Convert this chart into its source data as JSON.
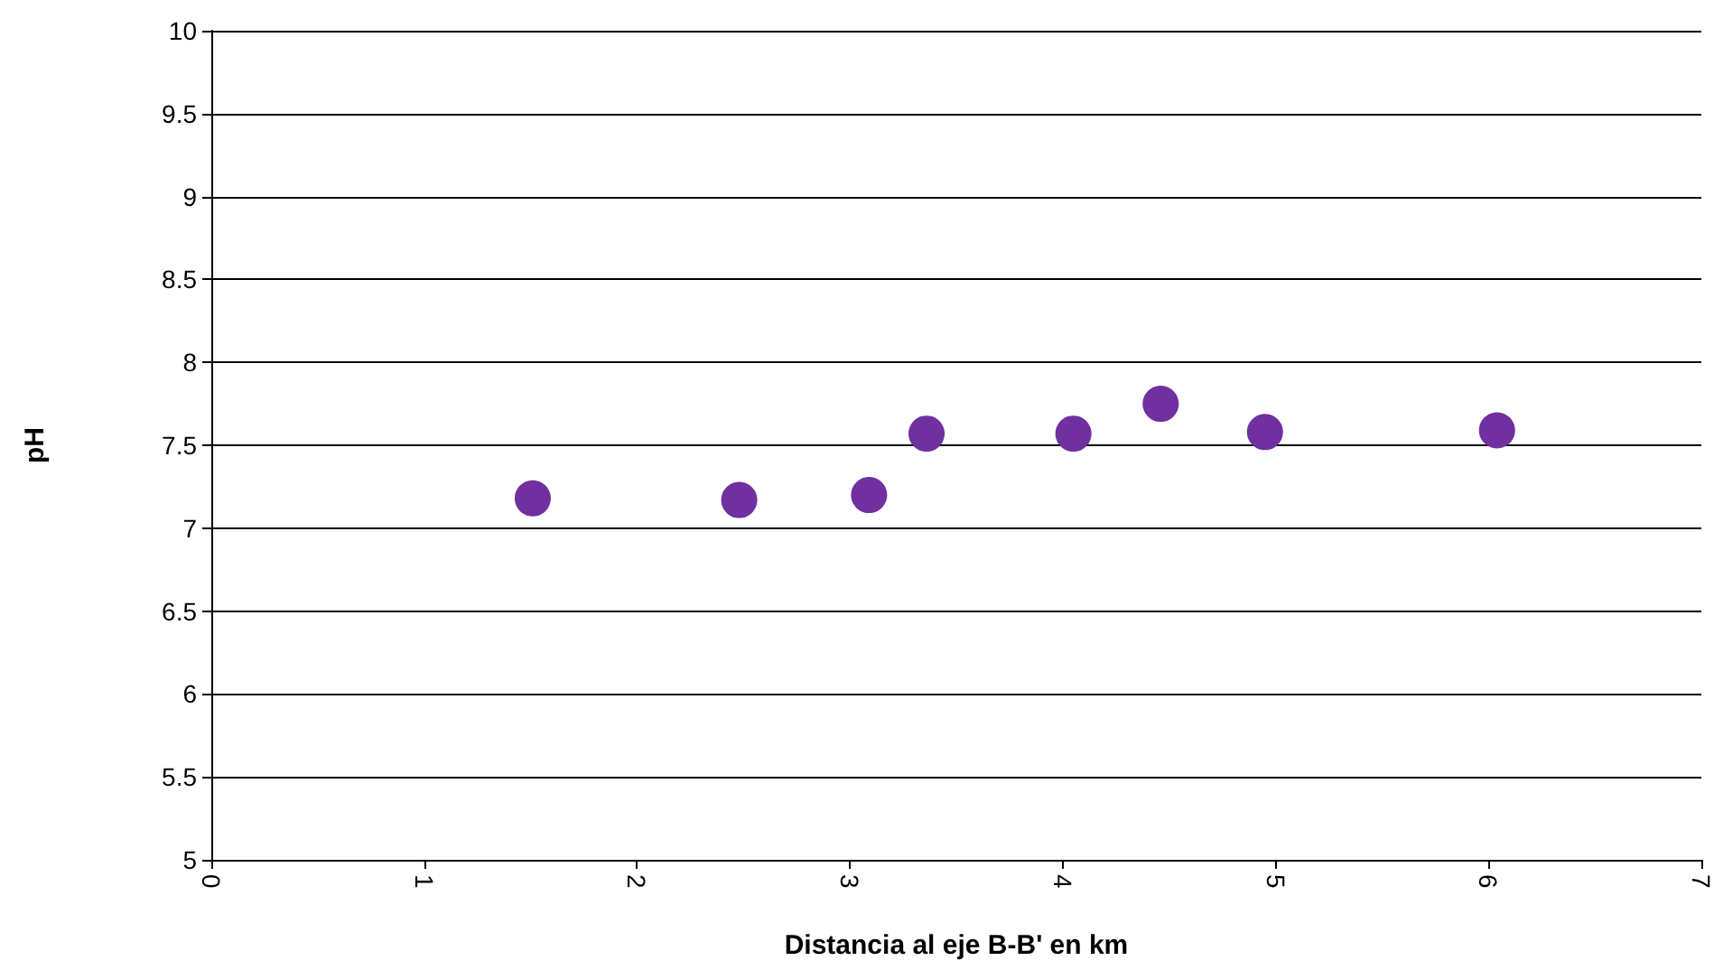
{
  "chart_data": {
    "type": "scatter",
    "xlabel": "Distancia al eje B-B' en km",
    "ylabel": "pH",
    "x": [
      1.51,
      2.48,
      3.09,
      3.36,
      4.05,
      4.46,
      4.95,
      6.04
    ],
    "series": [
      {
        "color": "#7030a0",
        "values": [
          7.18,
          7.17,
          7.2,
          7.57,
          7.57,
          7.75,
          7.58,
          7.59
        ]
      }
    ],
    "xlim": [
      0,
      7
    ],
    "xticks": [
      0,
      1,
      2,
      3,
      4,
      5,
      6,
      7
    ],
    "ylim": [
      5,
      10
    ],
    "yticks": [
      5,
      5.5,
      6,
      6.5,
      7,
      7.5,
      8,
      8.5,
      9,
      9.5,
      10
    ],
    "grid": "y",
    "marker": "circle"
  }
}
